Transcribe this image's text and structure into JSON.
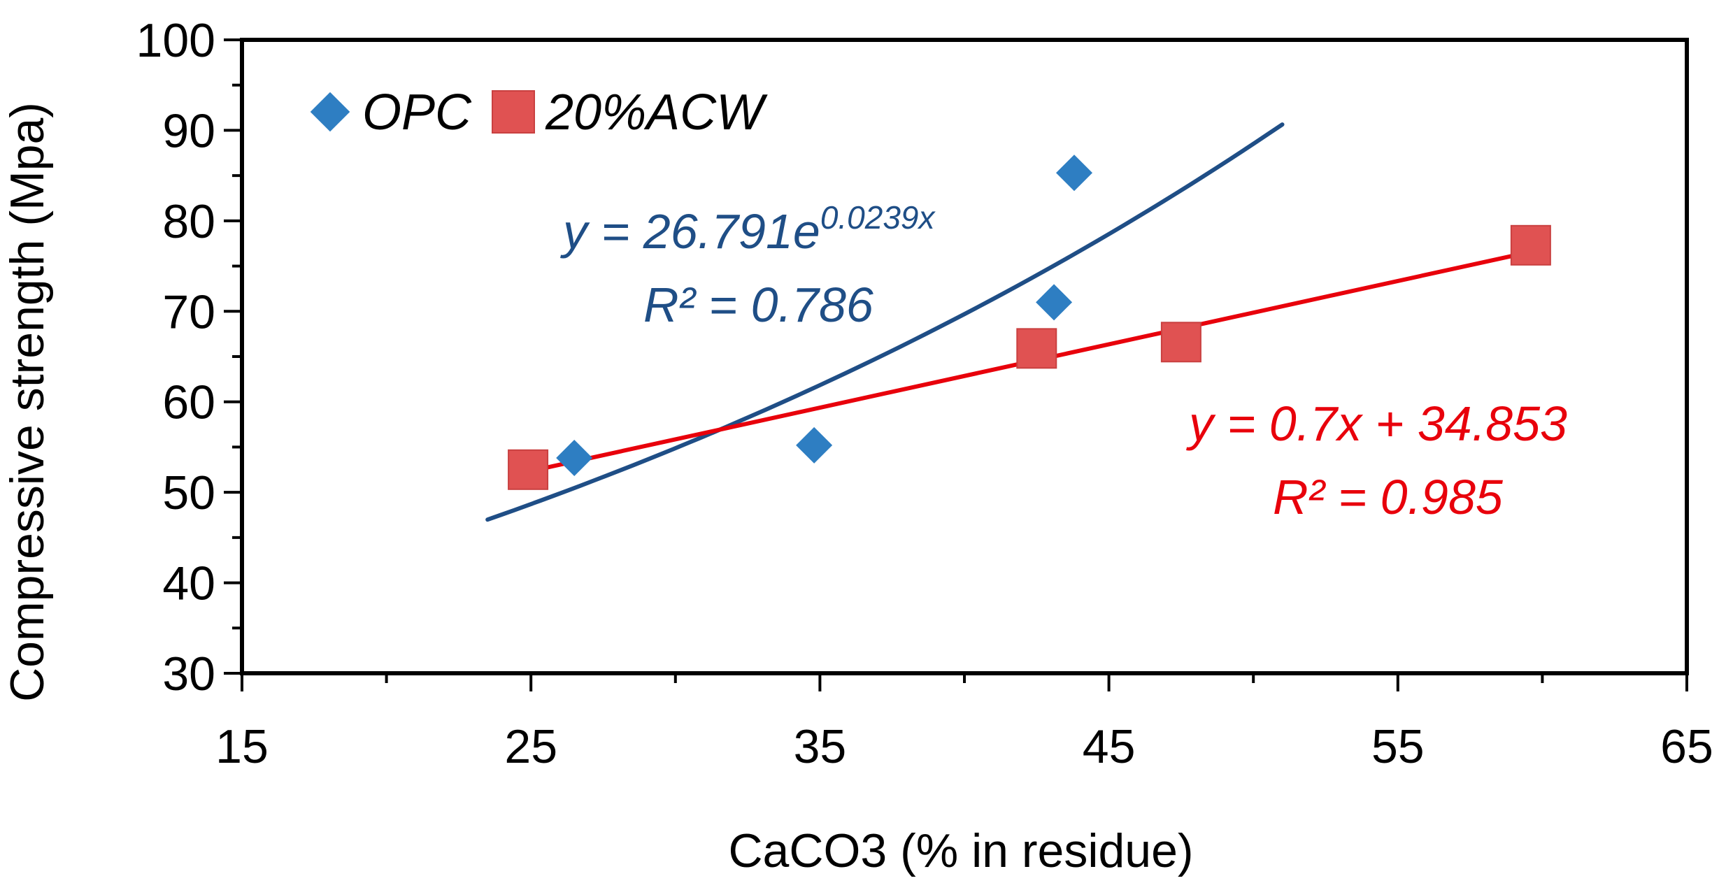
{
  "chart_data": {
    "type": "scatter",
    "title": "",
    "xlabel": "CaCO3 (% in residue)",
    "ylabel": "Compressive strength (Mpa)",
    "xlim": [
      15,
      65
    ],
    "ylim": [
      30,
      100
    ],
    "x_ticks": [
      15,
      25,
      35,
      45,
      55,
      65
    ],
    "y_ticks": [
      30,
      40,
      50,
      60,
      70,
      80,
      90,
      100
    ],
    "legend_position": "top-left",
    "grid": false,
    "series": [
      {
        "name": "OPC",
        "marker": "diamond",
        "color": "#2E7EC2",
        "points": [
          {
            "x": 26.5,
            "y": 53.8
          },
          {
            "x": 34.8,
            "y": 55.2
          },
          {
            "x": 43.1,
            "y": 71.0
          },
          {
            "x": 43.8,
            "y": 85.3
          }
        ],
        "trendline": {
          "type": "exponential",
          "a": 26.791,
          "b": 0.0239,
          "x_range": [
            23.5,
            51.0
          ],
          "color": "#1F4E86",
          "equation": "y = 26.791e",
          "exponent": "0.0239x",
          "r2_label": "R² = 0.786"
        }
      },
      {
        "name": "20%ACW",
        "marker": "square",
        "color": "#E05252",
        "points": [
          {
            "x": 24.9,
            "y": 52.5
          },
          {
            "x": 42.5,
            "y": 65.9
          },
          {
            "x": 47.5,
            "y": 66.6
          },
          {
            "x": 59.6,
            "y": 77.3
          }
        ],
        "trendline": {
          "type": "linear",
          "slope": 0.7,
          "intercept": 34.853,
          "x_range": [
            24.9,
            59.6
          ],
          "color": "#E8000B",
          "equation": "y = 0.7x + 34.853",
          "r2_label": "R² = 0.985"
        }
      }
    ]
  }
}
